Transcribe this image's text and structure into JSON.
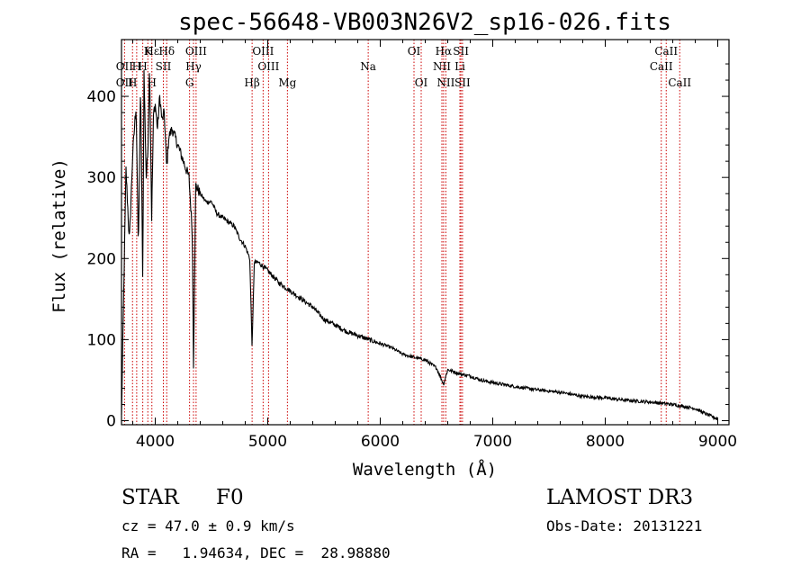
{
  "chart_data": {
    "type": "line",
    "title": "spec-56648-VB003N26V2_sp16-026.fits",
    "xlabel": "Wavelength (Å)",
    "ylabel": "Flux (relative)",
    "xlim": [
      3700,
      9100
    ],
    "ylim": [
      -5,
      470
    ],
    "xticks": [
      4000,
      5000,
      6000,
      7000,
      8000,
      9000
    ],
    "yticks": [
      0,
      100,
      200,
      300,
      400
    ],
    "spectrum": {
      "name": "flux",
      "x": [
        3700,
        3720,
        3740,
        3770,
        3800,
        3830,
        3850,
        3870,
        3889,
        3900,
        3920,
        3934,
        3950,
        3968,
        3985,
        4000,
        4020,
        4040,
        4060,
        4080,
        4102,
        4120,
        4150,
        4200,
        4250,
        4300,
        4330,
        4340,
        4360,
        4400,
        4450,
        4500,
        4550,
        4600,
        4650,
        4700,
        4750,
        4800,
        4840,
        4861,
        4880,
        4920,
        5000,
        5100,
        5200,
        5300,
        5400,
        5500,
        5600,
        5700,
        5800,
        5900,
        6000,
        6100,
        6200,
        6300,
        6400,
        6500,
        6563,
        6600,
        6700,
        6800,
        6900,
        7000,
        7200,
        7400,
        7600,
        7800,
        8000,
        8200,
        8400,
        8600,
        8800,
        8900,
        9000
      ],
      "y": [
        5,
        160,
        310,
        220,
        330,
        390,
        210,
        415,
        170,
        430,
        300,
        330,
        440,
        250,
        380,
        390,
        360,
        400,
        370,
        380,
        310,
        350,
        360,
        340,
        320,
        300,
        230,
        70,
        290,
        280,
        270,
        270,
        255,
        250,
        245,
        240,
        225,
        215,
        200,
        90,
        195,
        195,
        185,
        170,
        160,
        150,
        140,
        125,
        118,
        110,
        105,
        100,
        95,
        90,
        82,
        78,
        75,
        65,
        45,
        63,
        58,
        55,
        50,
        47,
        42,
        38,
        35,
        30,
        28,
        25,
        23,
        20,
        15,
        8,
        2
      ]
    },
    "lines": [
      {
        "label": "Hε",
        "wavelength": 3970,
        "row": 1
      },
      {
        "label": "K",
        "wavelength": 3934,
        "row": 1
      },
      {
        "label": "Hδ",
        "wavelength": 4102,
        "row": 1
      },
      {
        "label": "OIII",
        "wavelength": 4363,
        "row": 1
      },
      {
        "label": "OIII",
        "wavelength": 4959,
        "row": 1
      },
      {
        "label": "OI",
        "wavelength": 6300,
        "row": 1
      },
      {
        "label": "Hα",
        "wavelength": 6563,
        "row": 1
      },
      {
        "label": "SII",
        "wavelength": 6717,
        "row": 1
      },
      {
        "label": "CaII",
        "wavelength": 8542,
        "row": 1
      },
      {
        "label": "OII",
        "wavelength": 3727,
        "row": 2
      },
      {
        "label": "H",
        "wavelength": 3835,
        "row": 2
      },
      {
        "label": "H",
        "wavelength": 3889,
        "row": 2
      },
      {
        "label": "SII",
        "wavelength": 4072,
        "row": 2
      },
      {
        "label": "Hγ",
        "wavelength": 4340,
        "row": 2
      },
      {
        "label": "OIII",
        "wavelength": 5007,
        "row": 2
      },
      {
        "label": "Na",
        "wavelength": 5893,
        "row": 2
      },
      {
        "label": "NII",
        "wavelength": 6548,
        "row": 2
      },
      {
        "label": "Li",
        "wavelength": 6708,
        "row": 2
      },
      {
        "label": "CaII",
        "wavelength": 8498,
        "row": 2
      },
      {
        "label": "OII",
        "wavelength": 3727,
        "row": 3
      },
      {
        "label": "H",
        "wavelength": 3798,
        "row": 3
      },
      {
        "label": "H",
        "wavelength": 3970,
        "row": 3
      },
      {
        "label": "G",
        "wavelength": 4305,
        "row": 3
      },
      {
        "label": "Hβ",
        "wavelength": 4861,
        "row": 3
      },
      {
        "label": "Mg",
        "wavelength": 5175,
        "row": 3
      },
      {
        "label": "OI",
        "wavelength": 6364,
        "row": 3
      },
      {
        "label": "NII",
        "wavelength": 6583,
        "row": 3
      },
      {
        "label": "SII",
        "wavelength": 6731,
        "row": 3
      },
      {
        "label": "CaII",
        "wavelength": 8662,
        "row": 3
      }
    ],
    "line_color": "#cc0000",
    "spectrum_color": "#000000"
  },
  "info": {
    "class": "STAR",
    "subclass": "F0",
    "survey": "LAMOST DR3",
    "cz": "cz = 47.0 ± 0.9 km/s",
    "obs_date": "Obs-Date: 20131221",
    "radec": "RA =   1.94634, DEC =  28.98880"
  }
}
